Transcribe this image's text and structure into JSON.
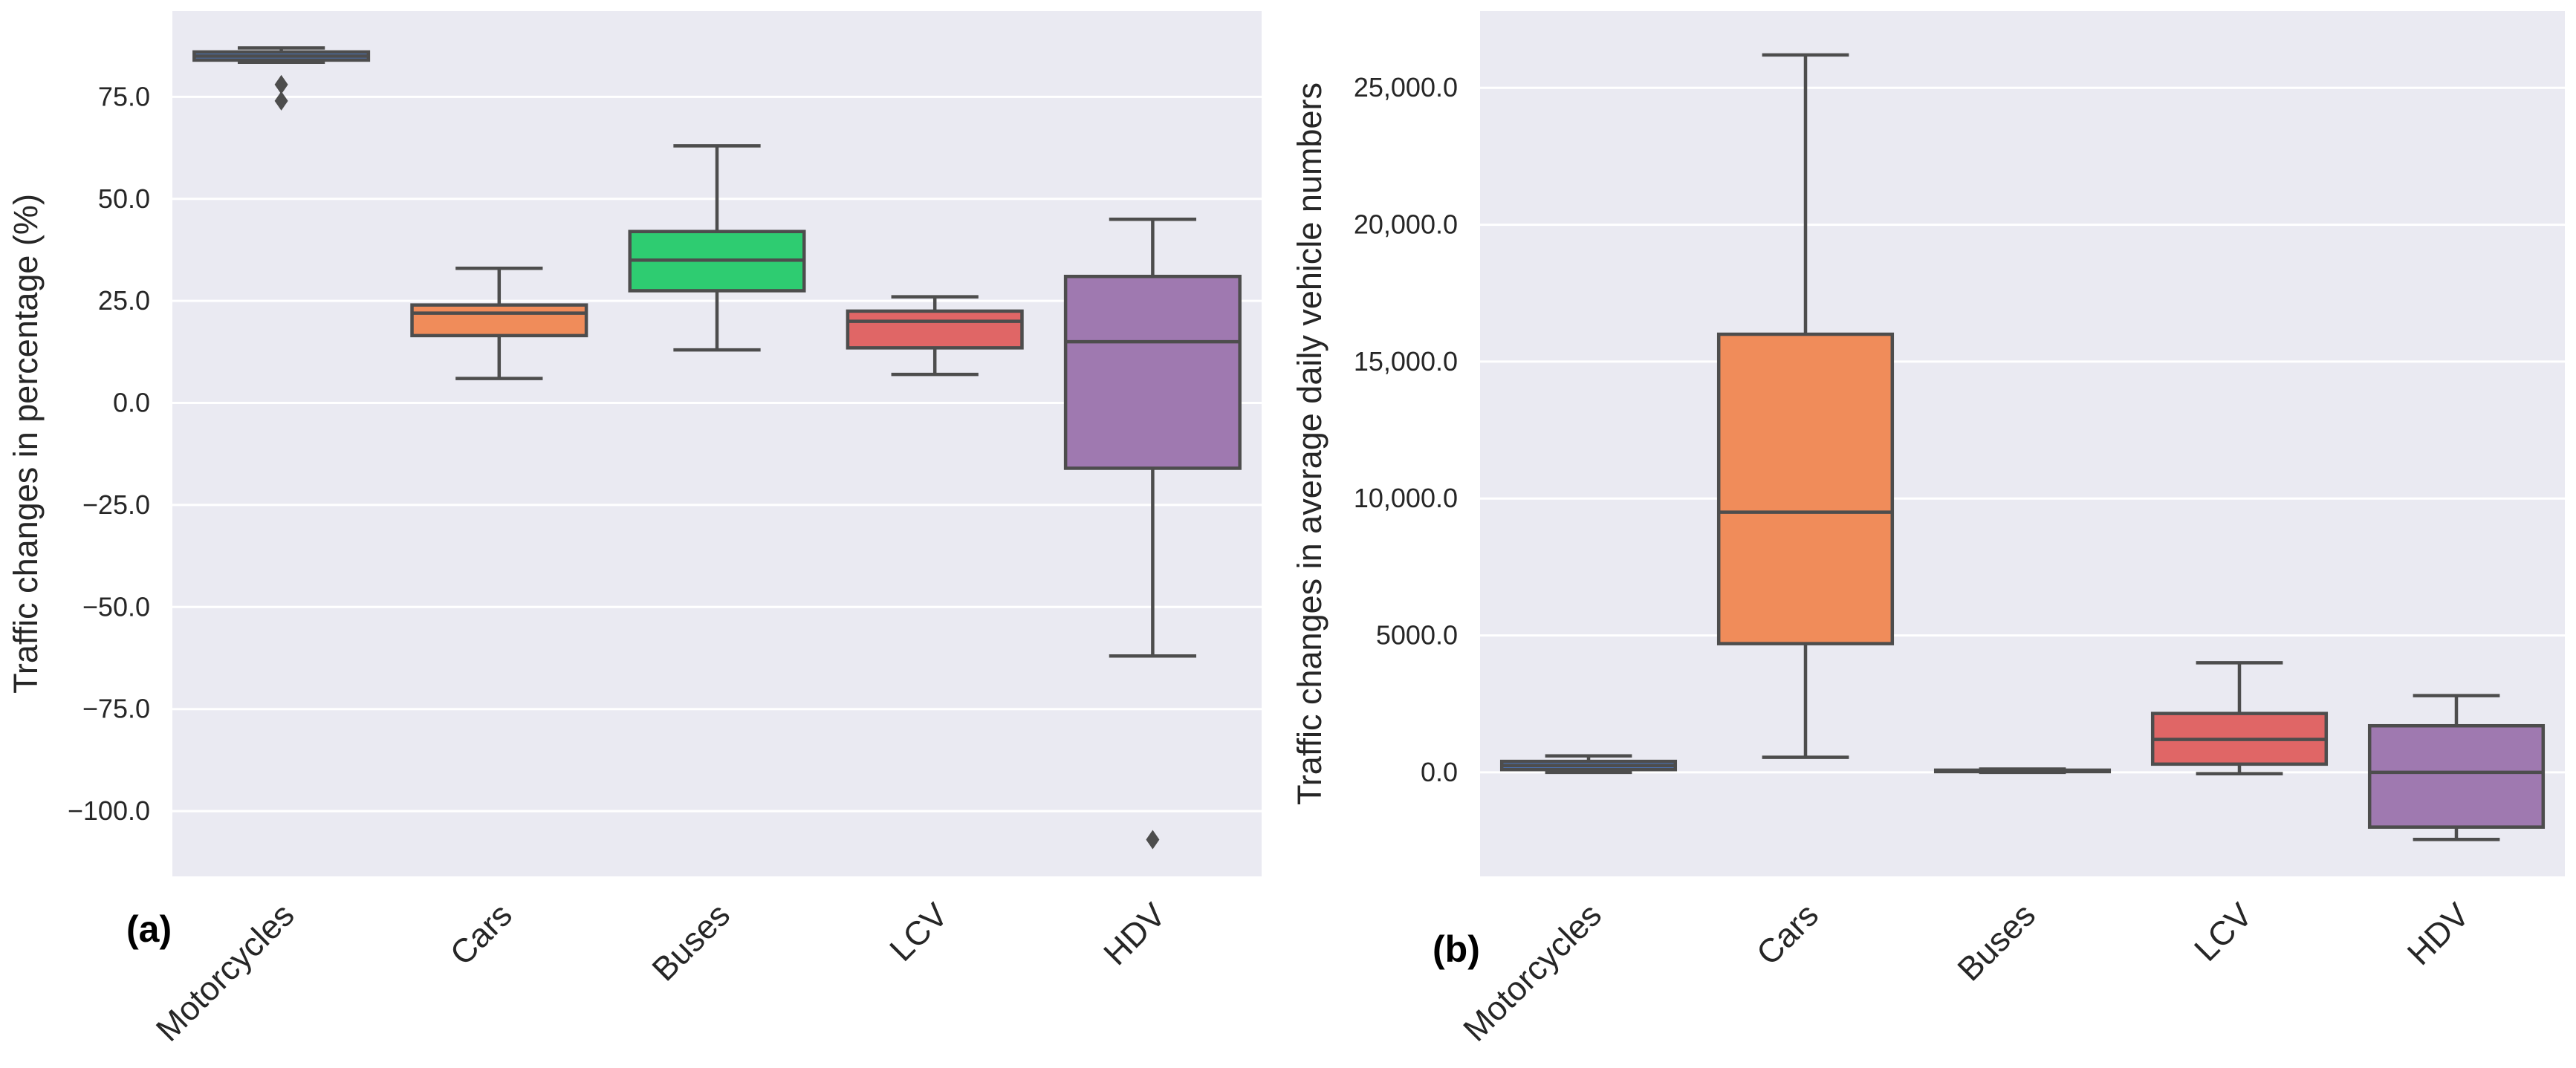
{
  "chart_data": [
    {
      "type": "box",
      "panel_label": "(a)",
      "title": "",
      "xlabel": "",
      "ylabel": "Traffic changes in percentage (%)",
      "ylim": [
        -116,
        96
      ],
      "grid": true,
      "yticks": [
        75,
        50,
        25,
        0,
        -25,
        -50,
        -75,
        -100
      ],
      "ytick_labels": [
        "75.0",
        "50.0",
        "25.0",
        "0.0",
        "−25.0",
        "−50.0",
        "−75.0",
        "−100.0"
      ],
      "categories": [
        "Motorcycles",
        "Cars",
        "Buses",
        "LCV",
        "HDV"
      ],
      "colors": [
        "#4c72b0",
        "#f08c5a",
        "#2ecc71",
        "#e06666",
        "#9f79b0"
      ],
      "boxes": [
        {
          "whisker_low": 83.5,
          "q1": 84,
          "median": 85,
          "q3": 86,
          "whisker_high": 87,
          "outliers": [
            78,
            74
          ]
        },
        {
          "whisker_low": 6,
          "q1": 16.5,
          "median": 22,
          "q3": 24,
          "whisker_high": 33,
          "outliers": []
        },
        {
          "whisker_low": 13,
          "q1": 27.5,
          "median": 35,
          "q3": 42,
          "whisker_high": 63,
          "outliers": []
        },
        {
          "whisker_low": 7,
          "q1": 13.5,
          "median": 20,
          "q3": 22.5,
          "whisker_high": 26,
          "outliers": []
        },
        {
          "whisker_low": -62,
          "q1": -16,
          "median": 15,
          "q3": 31,
          "whisker_high": 45,
          "outliers": [
            -107
          ]
        }
      ]
    },
    {
      "type": "box",
      "panel_label": "(b)",
      "title": "",
      "xlabel": "",
      "ylabel": "Traffic changes in average daily vehicle numbers",
      "ylim": [
        -3800,
        27800
      ],
      "grid": true,
      "yticks": [
        25000,
        20000,
        15000,
        10000,
        5000,
        0
      ],
      "ytick_labels": [
        "25,000.0",
        "20,000.0",
        "15,000.0",
        "10,000.0",
        "5000.0",
        "0.0"
      ],
      "categories": [
        "Motorcycles",
        "Cars",
        "Buses",
        "LCV",
        "HDV"
      ],
      "colors": [
        "#4c72b0",
        "#f08c5a",
        "#2ecc71",
        "#e06666",
        "#9f79b0"
      ],
      "boxes": [
        {
          "whisker_low": 0,
          "q1": 100,
          "median": 250,
          "q3": 400,
          "whisker_high": 600,
          "outliers": []
        },
        {
          "whisker_low": 550,
          "q1": 4700,
          "median": 9500,
          "q3": 16000,
          "whisker_high": 26200,
          "outliers": []
        },
        {
          "whisker_low": 0,
          "q1": 30,
          "median": 50,
          "q3": 80,
          "whisker_high": 120,
          "outliers": []
        },
        {
          "whisker_low": -50,
          "q1": 300,
          "median": 1200,
          "q3": 2150,
          "whisker_high": 4000,
          "outliers": []
        },
        {
          "whisker_low": -2450,
          "q1": -2000,
          "median": 0,
          "q3": 1700,
          "whisker_high": 2800,
          "outliers": []
        }
      ]
    }
  ]
}
